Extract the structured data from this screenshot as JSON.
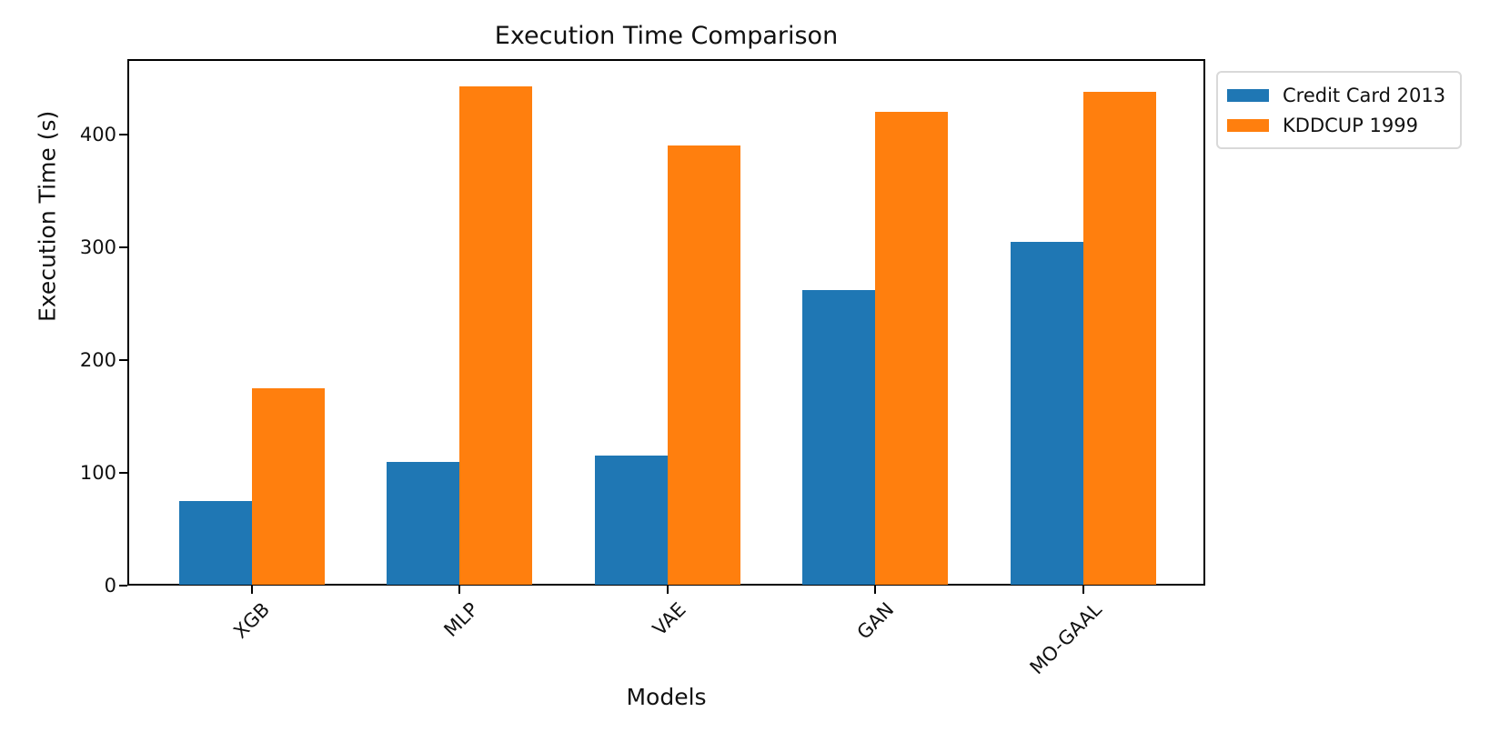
{
  "chart_data": {
    "type": "bar",
    "title": "Execution Time Comparison",
    "xlabel": "Models",
    "ylabel": "Execution Time (s)",
    "categories": [
      "XGB",
      "MLP",
      "VAE",
      "GAN",
      "MO-GAAL"
    ],
    "series": [
      {
        "name": "Credit Card 2013",
        "color": "#1f77b4",
        "values": [
          75,
          110,
          115,
          262,
          305
        ]
      },
      {
        "name": "KDDCUP 1999",
        "color": "#ff7f0e",
        "values": [
          175,
          443,
          390,
          420,
          438
        ]
      }
    ],
    "yticks": [
      0,
      100,
      200,
      300,
      400
    ],
    "ylim": [
      0,
      467
    ],
    "grid": false,
    "legend_position": "upper-right-outside",
    "colors": {
      "axis": "#000000",
      "legend_border": "#d9d9d9",
      "background": "#ffffff"
    }
  }
}
